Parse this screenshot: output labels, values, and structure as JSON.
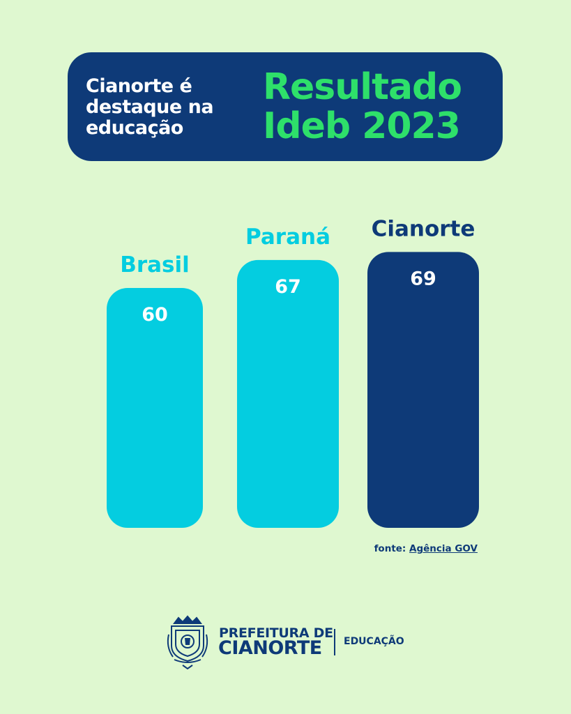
{
  "header": {
    "subtitle_lines": [
      "Cianorte é",
      "destaque na",
      "educação"
    ],
    "title_lines": [
      "Resultado",
      "Ideb 2023"
    ]
  },
  "chart_data": {
    "type": "bar",
    "categories": [
      "Brasil",
      "Paraná",
      "Cianorte"
    ],
    "values": [
      60,
      67,
      69
    ],
    "colors": [
      "#04cde0",
      "#04cde0",
      "#0e3a78"
    ],
    "label_colors": [
      "#04cde0",
      "#04cde0",
      "#0e3a78"
    ],
    "value_label_color": "#ffffff"
  },
  "source": {
    "prefix": "fonte: ",
    "link": "Agência GOV"
  },
  "footer": {
    "org_prefix": "PREFEITURA DE",
    "org_name": "CIANORTE",
    "department": "EDUCAÇÃO",
    "emblem_icon": "city-coat-of-arms-icon"
  },
  "colors": {
    "background": "#dff8d0",
    "navy": "#0e3a78",
    "cyan": "#04cde0",
    "green": "#2ee06a"
  }
}
